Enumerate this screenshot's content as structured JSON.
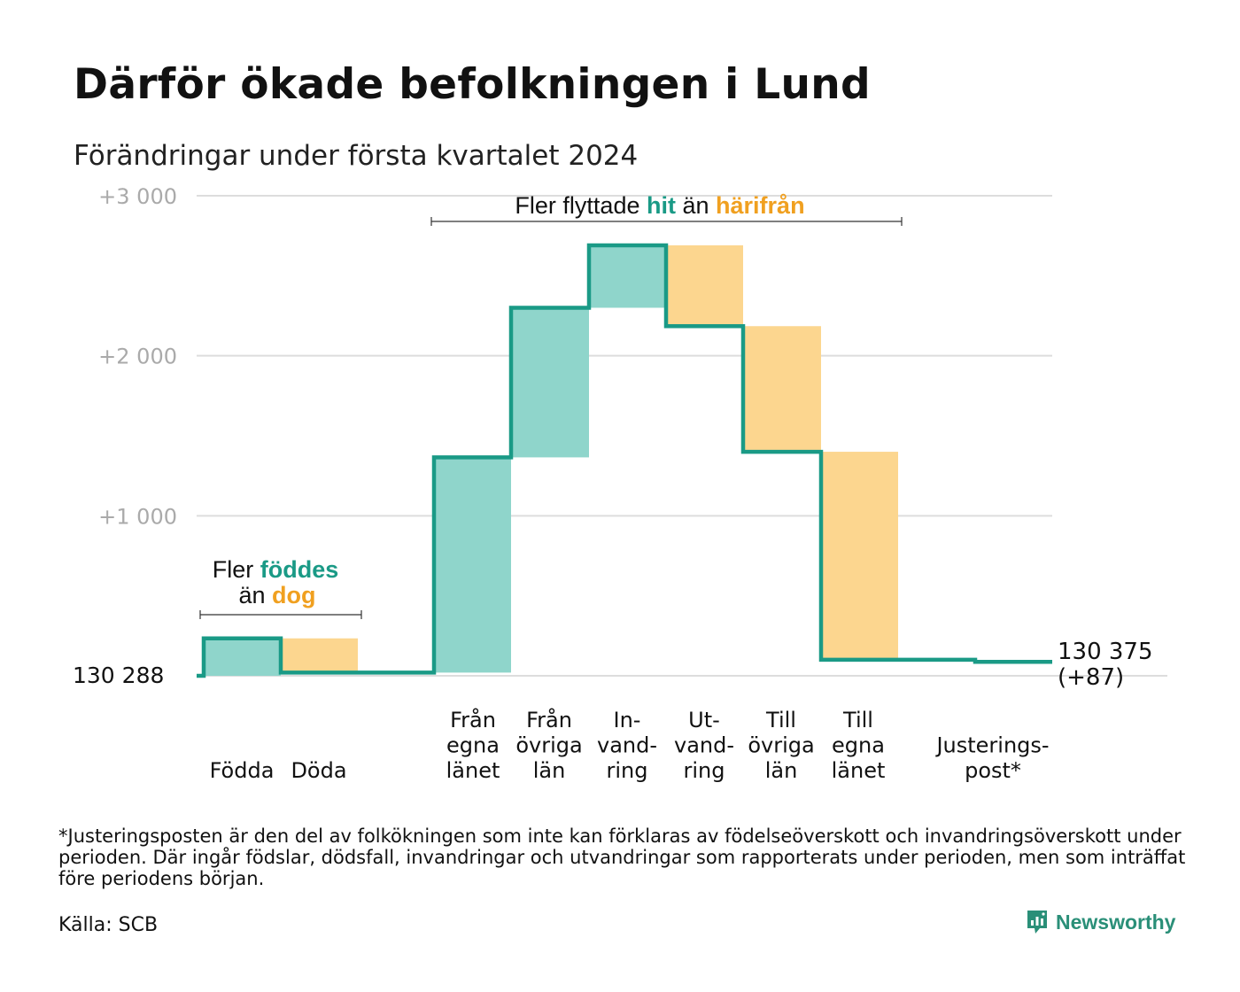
{
  "header": {
    "title": "Därför ökade befolkningen i Lund",
    "subtitle": "Förändringar under första kvartalet 2024"
  },
  "colors": {
    "teal": "#1a9a86",
    "teal_fill": "#8fd5cb",
    "orange": "#f0a020",
    "orange_fill": "#fcd68f",
    "grid": "#dddddd",
    "tick": "#aaaaaa"
  },
  "chart_data": {
    "type": "waterfall",
    "baseline_label": "130   288",
    "end_label": [
      "130 375",
      "(+87)"
    ],
    "y_ticks": [
      {
        "value": 1000,
        "label": "+1   000"
      },
      {
        "value": 2000,
        "label": "+2   000"
      },
      {
        "value": 3000,
        "label": "+3   000"
      }
    ],
    "ylim": [
      0,
      3000
    ],
    "steps": [
      {
        "label": [
          "Födda"
        ],
        "from": 0,
        "to": 234,
        "kind": "in"
      },
      {
        "label": [
          "Döda"
        ],
        "from": 234,
        "to": 20,
        "kind": "out"
      },
      {
        "label": [
          "Från",
          "egna",
          "länet"
        ],
        "from": 20,
        "to": 1365,
        "kind": "in"
      },
      {
        "label": [
          "Från",
          "övriga",
          "län"
        ],
        "from": 1365,
        "to": 2300,
        "kind": "in"
      },
      {
        "label": [
          "In-",
          "vand-",
          "ring"
        ],
        "from": 2300,
        "to": 2690,
        "kind": "in"
      },
      {
        "label": [
          "Ut-",
          "vand-",
          "ring"
        ],
        "from": 2690,
        "to": 2185,
        "kind": "out"
      },
      {
        "label": [
          "Till",
          "övriga",
          "län"
        ],
        "from": 2185,
        "to": 1400,
        "kind": "out"
      },
      {
        "label": [
          "Till",
          "egna",
          "länet"
        ],
        "from": 1400,
        "to": 100,
        "kind": "out"
      },
      {
        "label": [
          "Justerings-",
          "post*"
        ],
        "from": 100,
        "to": 87,
        "kind": "adjust"
      }
    ],
    "annotations": {
      "births": {
        "pre": "Fler ",
        "hi1": "föddes",
        "line2_pre": "än ",
        "hi2": "dog"
      },
      "moves": {
        "pre": "Fler flyttade ",
        "hi1": "hit",
        "mid": " än ",
        "hi2": "härifrån"
      }
    }
  },
  "footer": {
    "footnote": "*Justeringsposten är den del av folkökningen som inte kan förklaras av födelseöverskott och invandringsöverskott under perioden. Där ingår födslar, dödsfall, invandringar och utvandringar som rapporterats under perioden, men som inträffat före periodens början.",
    "source": "Källa: SCB",
    "brand": "Newsworthy"
  }
}
